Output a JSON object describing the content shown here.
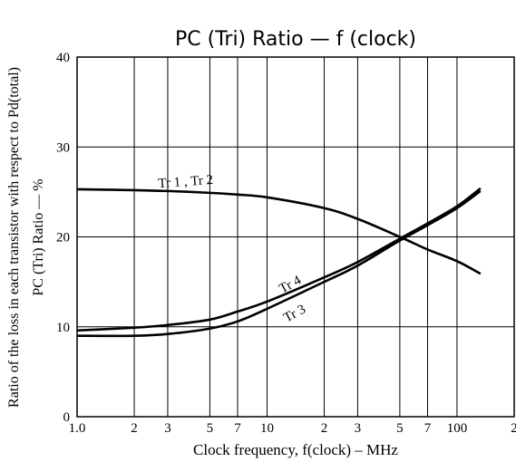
{
  "chart_data": {
    "type": "line",
    "title": "PC (Tri) Ratio  —  f (clock)",
    "x_label": "Clock frequency, f(clock) – MHz",
    "y_label": "Ratio of the loss in each transistor with respect to Pd(total)",
    "y_label_2": "PC (Tri) Ratio  —  %",
    "x_scale": "log",
    "grid": true,
    "xlim": [
      1,
      200
    ],
    "ylim": [
      0,
      40
    ],
    "xticks": [
      {
        "value": 1,
        "label": "1.0"
      },
      2,
      3,
      5,
      7,
      10,
      {
        "value": 20,
        "label": "2"
      },
      {
        "value": 30,
        "label": "3"
      },
      {
        "value": 50,
        "label": "5"
      },
      {
        "value": 70,
        "label": "7"
      },
      100,
      {
        "value": 200,
        "label": "2"
      }
    ],
    "yticks": [
      0,
      10,
      20,
      30,
      40
    ],
    "series": [
      {
        "name": "Tr 1 , Tr 2",
        "color": "#000000",
        "x": [
          1,
          2,
          3,
          5,
          7,
          10,
          20,
          30,
          50,
          70,
          100,
          133
        ],
        "values": [
          25.3,
          25.2,
          25.1,
          24.9,
          24.7,
          24.4,
          23.2,
          22.0,
          20.0,
          18.6,
          17.3,
          15.9
        ]
      },
      {
        "name": "Tr 4",
        "color": "#000000",
        "x": [
          1,
          2,
          3,
          5,
          7,
          10,
          20,
          30,
          50,
          70,
          100,
          133
        ],
        "values": [
          9.6,
          9.9,
          10.2,
          10.8,
          11.7,
          12.8,
          15.5,
          17.2,
          19.8,
          21.5,
          23.4,
          25.4
        ]
      },
      {
        "name": "Tr 3",
        "color": "#000000",
        "x": [
          1,
          2,
          3,
          5,
          7,
          10,
          20,
          30,
          50,
          70,
          100,
          133
        ],
        "values": [
          9.0,
          9.0,
          9.2,
          9.8,
          10.6,
          12.0,
          15.0,
          16.8,
          19.6,
          21.3,
          23.2,
          25.1
        ]
      }
    ]
  }
}
